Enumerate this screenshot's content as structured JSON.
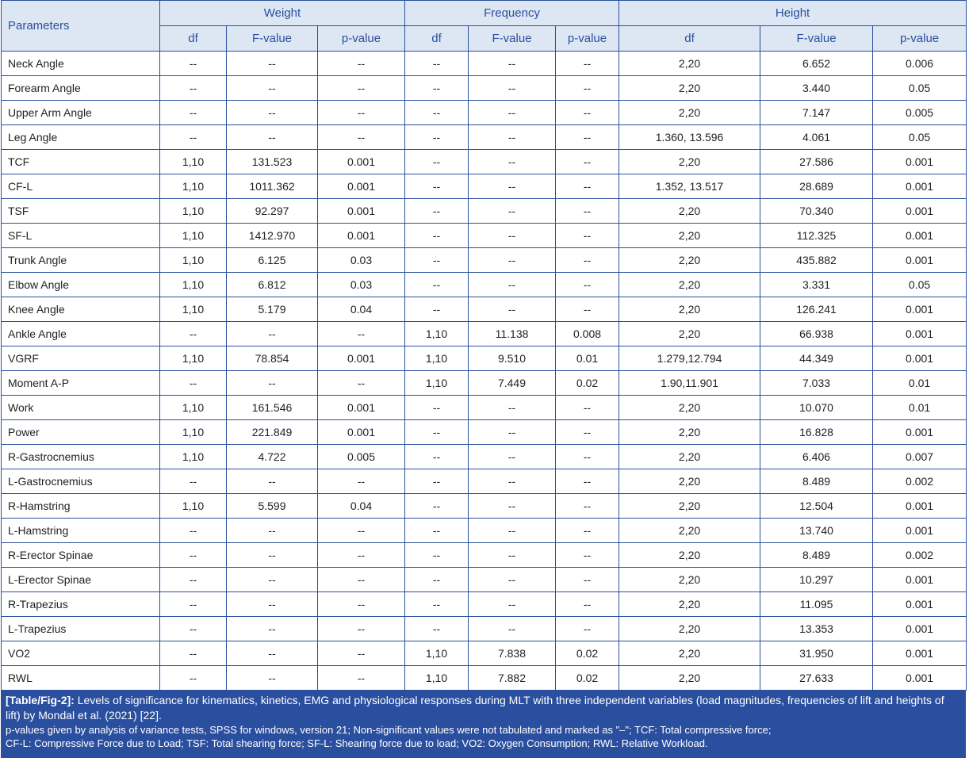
{
  "headers": {
    "parameters": "Parameters",
    "groups": [
      "Weight",
      "Frequency",
      "Height"
    ],
    "sub": [
      "df",
      "F-value",
      "p-value",
      "df",
      "F-value",
      "p-value",
      "df",
      "F-value",
      "p-value"
    ]
  },
  "rows": [
    [
      "Neck Angle",
      "--",
      "--",
      "--",
      "--",
      "--",
      "--",
      "2,20",
      "6.652",
      "0.006"
    ],
    [
      "Forearm Angle",
      "--",
      "--",
      "--",
      "--",
      "--",
      "--",
      "2,20",
      "3.440",
      "0.05"
    ],
    [
      "Upper Arm Angle",
      "--",
      "--",
      "--",
      "--",
      "--",
      "--",
      "2,20",
      "7.147",
      "0.005"
    ],
    [
      "Leg Angle",
      "--",
      "--",
      "--",
      "--",
      "--",
      "--",
      "1.360, 13.596",
      "4.061",
      "0.05"
    ],
    [
      "TCF",
      "1,10",
      "131.523",
      "0.001",
      "--",
      "--",
      "--",
      "2,20",
      "27.586",
      "0.001"
    ],
    [
      "CF-L",
      "1,10",
      "1011.362",
      "0.001",
      "--",
      "--",
      "--",
      "1.352, 13.517",
      "28.689",
      "0.001"
    ],
    [
      "TSF",
      "1,10",
      "92.297",
      "0.001",
      "--",
      "--",
      "--",
      "2,20",
      "70.340",
      "0.001"
    ],
    [
      "SF-L",
      "1,10",
      "1412.970",
      "0.001",
      "--",
      "--",
      "--",
      "2,20",
      "112.325",
      "0.001"
    ],
    [
      "Trunk Angle",
      "1,10",
      "6.125",
      "0.03",
      "--",
      "--",
      "--",
      "2,20",
      "435.882",
      "0.001"
    ],
    [
      "Elbow Angle",
      "1,10",
      "6.812",
      "0.03",
      "--",
      "--",
      "--",
      "2,20",
      "3.331",
      "0.05"
    ],
    [
      "Knee Angle",
      "1,10",
      "5.179",
      "0.04",
      "--",
      "--",
      "--",
      "2,20",
      "126.241",
      "0.001"
    ],
    [
      "Ankle Angle",
      "--",
      "--",
      "--",
      "1,10",
      "11.138",
      "0.008",
      "2,20",
      "66.938",
      "0.001"
    ],
    [
      "VGRF",
      "1,10",
      "78.854",
      "0.001",
      "1,10",
      "9.510",
      "0.01",
      "1.279,12.794",
      "44.349",
      "0.001"
    ],
    [
      "Moment A-P",
      "--",
      "--",
      "--",
      "1,10",
      "7.449",
      "0.02",
      "1.90,11.901",
      "7.033",
      "0.01"
    ],
    [
      "Work",
      "1,10",
      "161.546",
      "0.001",
      "--",
      "--",
      "--",
      "2,20",
      "10.070",
      "0.01"
    ],
    [
      "Power",
      "1,10",
      "221.849",
      "0.001",
      "--",
      "--",
      "--",
      "2,20",
      "16.828",
      "0.001"
    ],
    [
      "R-Gastrocnemius",
      "1,10",
      "4.722",
      "0.005",
      "--",
      "--",
      "--",
      "2,20",
      "6.406",
      "0.007"
    ],
    [
      "L-Gastrocnemius",
      "--",
      "--",
      "--",
      "--",
      "--",
      "--",
      "2,20",
      "8.489",
      "0.002"
    ],
    [
      "R-Hamstring",
      "1,10",
      "5.599",
      "0.04",
      "--",
      "--",
      "--",
      "2,20",
      "12.504",
      "0.001"
    ],
    [
      "L-Hamstring",
      "--",
      "--",
      "--",
      "--",
      "--",
      "--",
      "2,20",
      "13.740",
      "0.001"
    ],
    [
      "R-Erector Spinae",
      "--",
      "--",
      "--",
      "--",
      "--",
      "--",
      "2,20",
      "8.489",
      "0.002"
    ],
    [
      "L-Erector Spinae",
      "--",
      "--",
      "--",
      "--",
      "--",
      "--",
      "2,20",
      "10.297",
      "0.001"
    ],
    [
      "R-Trapezius",
      "--",
      "--",
      "--",
      "--",
      "--",
      "--",
      "2,20",
      "11.095",
      "0.001"
    ],
    [
      "L-Trapezius",
      "--",
      "--",
      "--",
      "--",
      "--",
      "--",
      "2,20",
      "13.353",
      "0.001"
    ],
    [
      "VO2",
      "--",
      "--",
      "--",
      "1,10",
      "7.838",
      "0.02",
      "2,20",
      "31.950",
      "0.001"
    ],
    [
      "RWL",
      "--",
      "--",
      "--",
      "1,10",
      "7.882",
      "0.02",
      "2,20",
      "27.633",
      "0.001"
    ]
  ],
  "caption": {
    "label": "[Table/Fig-2]:",
    "title": " Levels of significance for kinematics, kinetics, EMG and physiological responses during MLT with three independent variables (load magnitudes, frequencies of lift and heights of lift) by Mondal et al. (2021) [22].",
    "note1": "p-values given by analysis of variance tests, SPSS for windows, version 21; Non-significant values were not tabulated and marked as \"–\"; TCF: Total compressive force;",
    "note2": "CF-L: Compressive Force due to Load; TSF: Total shearing force; SF-L: Shearing force due to load; VO2: Oxygen Consumption; RWL: Relative Workload."
  },
  "colors": {
    "border": "#2a4f9c",
    "header_bg": "#dde7f4",
    "caption_bg": "#2b4f9f"
  }
}
